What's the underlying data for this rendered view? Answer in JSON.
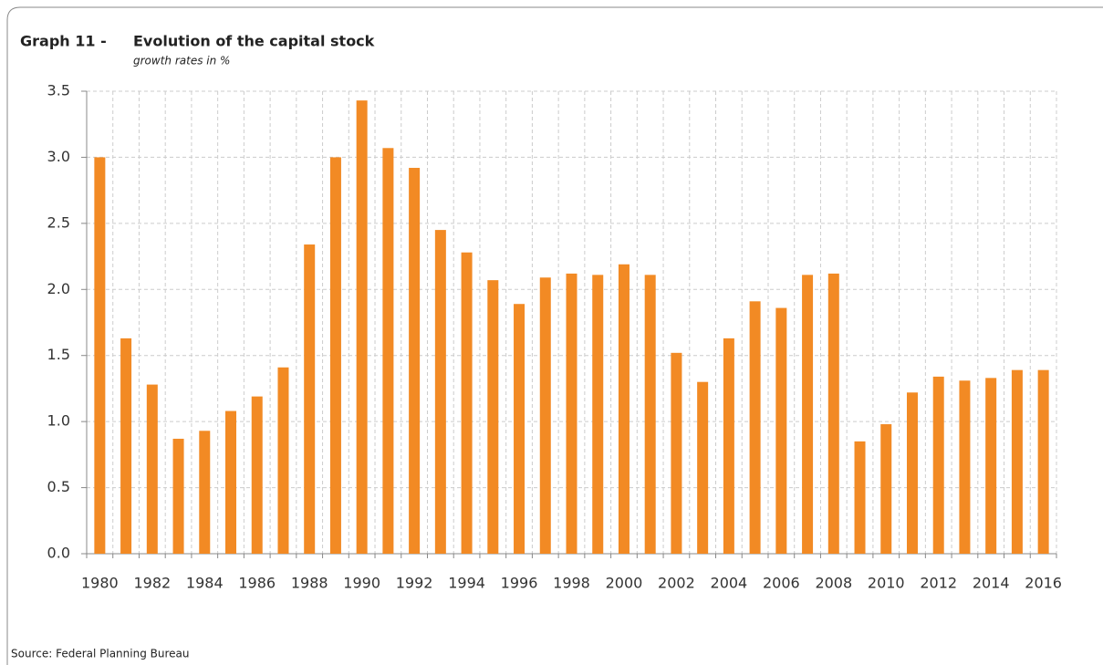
{
  "chart_data": {
    "type": "bar",
    "title_prefix": "Graph 11 -",
    "title": "Evolution of the capital stock",
    "subtitle": "growth rates in %",
    "source": "Source: Federal Planning Bureau",
    "categories": [
      "1980",
      null,
      "1982",
      null,
      "1984",
      null,
      "1986",
      null,
      "1988",
      null,
      "1990",
      null,
      "1992",
      null,
      "1994",
      null,
      "1996",
      null,
      "1998",
      null,
      "2000",
      null,
      "2002",
      null,
      "2004",
      null,
      "2006",
      null,
      "2008",
      null,
      "2010",
      null,
      "2012",
      null,
      "2014",
      null,
      "2016"
    ],
    "values": [
      3.0,
      1.63,
      1.28,
      0.87,
      0.93,
      1.08,
      1.19,
      1.41,
      2.34,
      3.0,
      3.43,
      3.07,
      2.92,
      2.45,
      2.28,
      2.07,
      1.89,
      2.09,
      2.12,
      2.11,
      2.19,
      2.11,
      1.52,
      1.3,
      1.63,
      1.91,
      1.86,
      2.11,
      2.12,
      0.85,
      0.98,
      1.22,
      1.34,
      1.31,
      1.33,
      1.39,
      1.39
    ],
    "color": "#f28a24",
    "ylim": [
      0,
      3.5
    ],
    "yticks": [
      {
        "value": 0,
        "label": "0.0"
      },
      0.5,
      {
        "value": 1,
        "label": "1.0"
      },
      1.5,
      {
        "value": 2,
        "label": "2.0"
      },
      2.5,
      {
        "value": 3,
        "label": "3.0"
      },
      3.5
    ],
    "grid": true
  }
}
